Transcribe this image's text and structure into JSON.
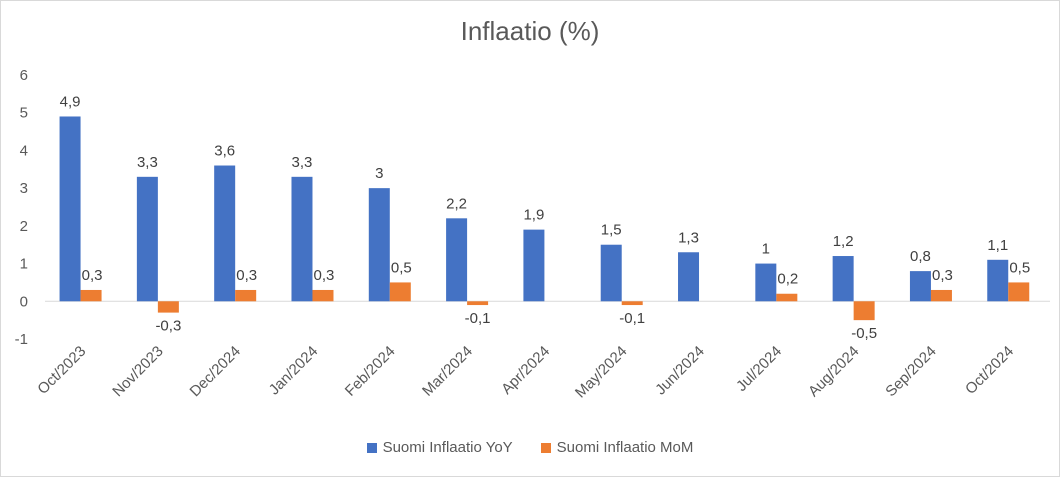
{
  "chart_data": {
    "type": "bar",
    "title": "Inflaatio (%)",
    "categories": [
      "Oct/2023",
      "Nov/2023",
      "Dec/2024",
      "Jan/2024",
      "Feb/2024",
      "Mar/2024",
      "Apr/2024",
      "May/2024",
      "Jun/2024",
      "Jul/2024",
      "Aug/2024",
      "Sep/2024",
      "Oct/2024"
    ],
    "series": [
      {
        "name": "Suomi Inflaatio YoY",
        "color": "#4472C4",
        "values": [
          4.9,
          3.3,
          3.6,
          3.3,
          3,
          2.2,
          1.9,
          1.5,
          1.3,
          1,
          1.2,
          0.8,
          1.1
        ],
        "labels": [
          "4,9",
          "3,3",
          "3,6",
          "3,3",
          "3",
          "2,2",
          "1,9",
          "1,5",
          "1,3",
          "1",
          "1,2",
          "0,8",
          "1,1"
        ]
      },
      {
        "name": "Suomi Inflaatio MoM",
        "color": "#ED7D31",
        "values": [
          0.3,
          -0.3,
          0.3,
          0.3,
          0.5,
          -0.1,
          null,
          -0.1,
          null,
          0.2,
          -0.5,
          0.3,
          0.5
        ],
        "labels": [
          "0,3",
          "-0,3",
          "0,3",
          "0,3",
          "0,5",
          "-0,1",
          "",
          "-0,1",
          "",
          "0,2",
          "-0,5",
          "0,3",
          "0,5"
        ]
      }
    ],
    "ylim": [
      -1,
      6
    ],
    "yticks": [
      "-1",
      "0",
      "1",
      "2",
      "3",
      "4",
      "5",
      "6"
    ],
    "grid": false,
    "legend": "bottom"
  }
}
